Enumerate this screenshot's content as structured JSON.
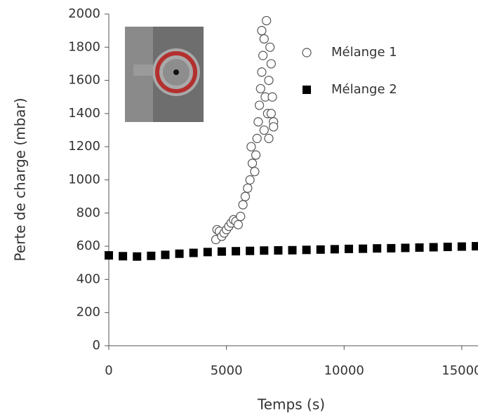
{
  "chart_data": {
    "type": "scatter",
    "xlabel": "Temps (s)",
    "ylabel": "Perte de charge (mbar)",
    "xlim": [
      0,
      15600
    ],
    "ylim": [
      0,
      2000
    ],
    "xticks": [
      0,
      5000,
      10000,
      15000
    ],
    "yticks": [
      0,
      200,
      400,
      600,
      800,
      1000,
      1200,
      1400,
      1600,
      1800,
      2000
    ],
    "legend": "upper right",
    "series": [
      {
        "name": "Mélange 1",
        "color": "#555555",
        "marker": "open-circle",
        "x": [
          4550,
          4600,
          4700,
          4800,
          4900,
          5000,
          5100,
          5200,
          5300,
          5400,
          5500,
          5600,
          5700,
          5800,
          5900,
          6000,
          6050,
          6100,
          6200,
          6250,
          6300,
          6350,
          6400,
          6450,
          6500,
          6550,
          6500,
          6600,
          6650,
          6700,
          6750,
          6800,
          6850,
          6900,
          6950,
          7000,
          7000,
          6900,
          6600,
          6800
        ],
        "values": [
          640,
          700,
          690,
          660,
          680,
          700,
          720,
          740,
          760,
          750,
          730,
          780,
          850,
          900,
          950,
          1000,
          1200,
          1100,
          1050,
          1150,
          1250,
          1350,
          1450,
          1550,
          1650,
          1750,
          1900,
          1850,
          1500,
          1960,
          1400,
          1600,
          1800,
          1700,
          1500,
          1350,
          1320,
          1400,
          1300,
          1250
        ]
      },
      {
        "name": "Mélange 2",
        "color": "#000000",
        "marker": "filled-square",
        "x": [
          0,
          600,
          1200,
          1800,
          2400,
          3000,
          3600,
          4200,
          4800,
          5400,
          6000,
          6600,
          7200,
          7800,
          8400,
          9000,
          9600,
          10200,
          10800,
          11400,
          12000,
          12600,
          13200,
          13800,
          14400,
          15000,
          15600
        ],
        "values": [
          545,
          540,
          538,
          542,
          548,
          555,
          560,
          565,
          568,
          570,
          572,
          574,
          575,
          576,
          578,
          580,
          582,
          584,
          585,
          587,
          588,
          590,
          592,
          594,
          596,
          598,
          600
        ]
      }
    ]
  }
}
